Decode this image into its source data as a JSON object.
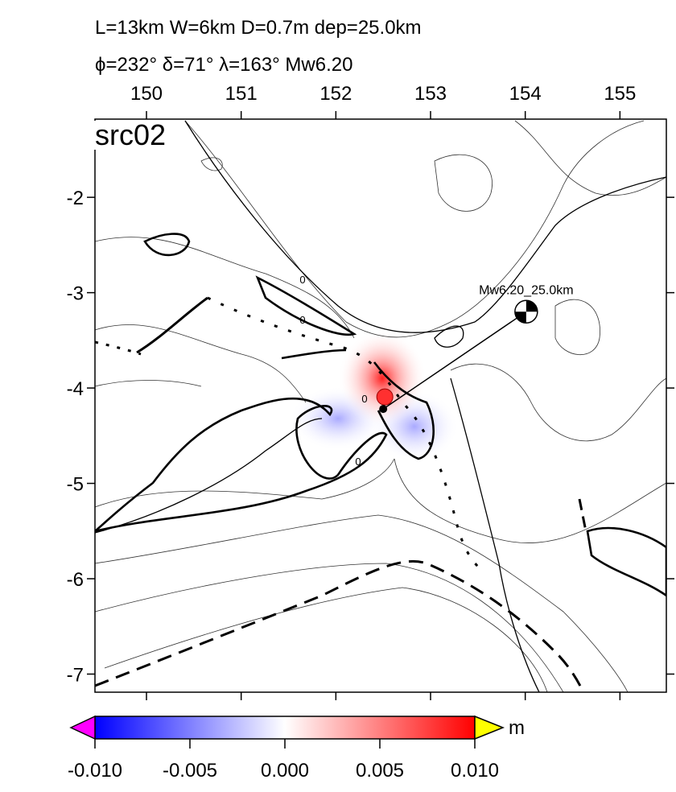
{
  "header": {
    "line1": "L=13km W=6km D=0.7m dep=25.0km",
    "line2": "ϕ=232° δ=71° λ=163° Mw6.20"
  },
  "map": {
    "label": "src02",
    "xlim": [
      149.456,
      155.49
    ],
    "ylim": [
      -7.19,
      -1.18
    ],
    "xticks": [
      150,
      151,
      152,
      153,
      154,
      155
    ],
    "yticks": [
      -2,
      -3,
      -4,
      -5,
      -6,
      -7
    ],
    "mechanism": {
      "label": "Mw6.20_25.0km",
      "lon": 154.01,
      "lat": -3.2
    },
    "epicenter": {
      "lon": 152.5,
      "lat": -4.22
    },
    "contour_labels": [
      "0",
      "0",
      "0",
      "0"
    ]
  },
  "colorbar": {
    "lim": [
      -0.01,
      0.01
    ],
    "ticks": [
      {
        "value": -0.01,
        "label": "-0.010"
      },
      {
        "value": -0.005,
        "label": "-0.005"
      },
      {
        "value": 0,
        "label": "0.000"
      },
      {
        "value": 0.005,
        "label": "0.005"
      },
      {
        "value": 0.01,
        "label": "0.010"
      }
    ],
    "unit": "m"
  }
}
